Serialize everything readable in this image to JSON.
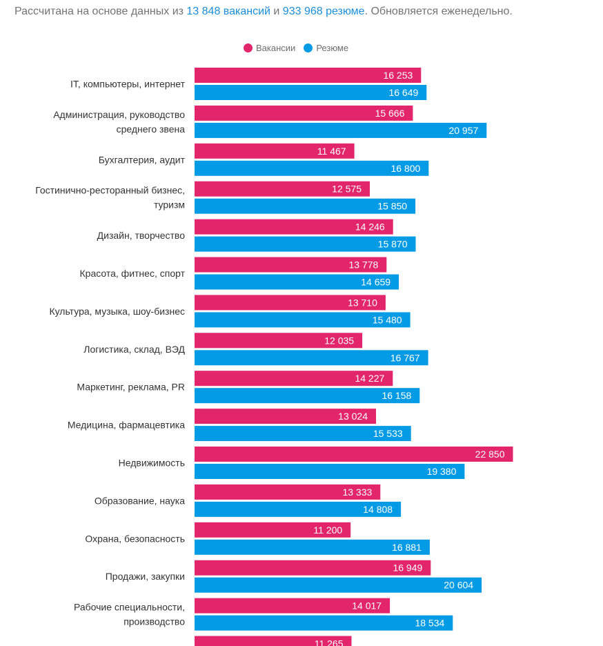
{
  "header": {
    "prefix": "Рассчитана на основе данных из ",
    "vacancies_link": "13 848 вакансий",
    "and": " и ",
    "resumes_link": "933 968 резюме",
    "suffix": ". Обновляется еженедельно."
  },
  "colors": {
    "vacancies": "#e3256b",
    "resumes": "#039be5"
  },
  "chart_data": {
    "type": "bar",
    "orientation": "horizontal",
    "legend_position": "top-center",
    "grid": false,
    "xlim": [
      0,
      23500
    ],
    "categories": [
      [
        "IT, компьютеры, интернет"
      ],
      [
        "Администрация, руководство",
        "среднего звена"
      ],
      [
        "Бухгалтерия, аудит"
      ],
      [
        "Гостинично-ресторанный бизнес,",
        "туризм"
      ],
      [
        "Дизайн, творчество"
      ],
      [
        "Красота, фитнес, спорт"
      ],
      [
        "Культура, музыка, шоу-бизнес"
      ],
      [
        "Логистика, склад, ВЭД"
      ],
      [
        "Маркетинг, реклама, PR"
      ],
      [
        "Медицина, фармацевтика"
      ],
      [
        "Недвижимость"
      ],
      [
        "Образование, наука"
      ],
      [
        "Охрана, безопасность"
      ],
      [
        "Продажи, закупки"
      ],
      [
        "Рабочие специальности,",
        "производство"
      ],
      [
        ""
      ]
    ],
    "series": [
      {
        "name": "Вакансии",
        "color": "#e3256b",
        "values": [
          16253,
          15666,
          11467,
          12575,
          14246,
          13778,
          13710,
          12035,
          14227,
          13024,
          22850,
          13333,
          11200,
          16949,
          14017,
          11265
        ],
        "labels": [
          "16 253",
          "15 666",
          "11 467",
          "12 575",
          "14 246",
          "13 778",
          "13 710",
          "12 035",
          "14 227",
          "13 024",
          "22 850",
          "13 333",
          "11 200",
          "16 949",
          "14 017",
          "11 265"
        ]
      },
      {
        "name": "Резюме",
        "color": "#039be5",
        "values": [
          16649,
          20957,
          16800,
          15850,
          15870,
          14659,
          15480,
          16767,
          16158,
          15533,
          19380,
          14808,
          16881,
          20604,
          18534,
          null
        ],
        "labels": [
          "16 649",
          "20 957",
          "16 800",
          "15 850",
          "15 870",
          "14 659",
          "15 480",
          "16 767",
          "16 158",
          "15 533",
          "19 380",
          "14 808",
          "16 881",
          "20 604",
          "18 534",
          ""
        ]
      }
    ]
  }
}
